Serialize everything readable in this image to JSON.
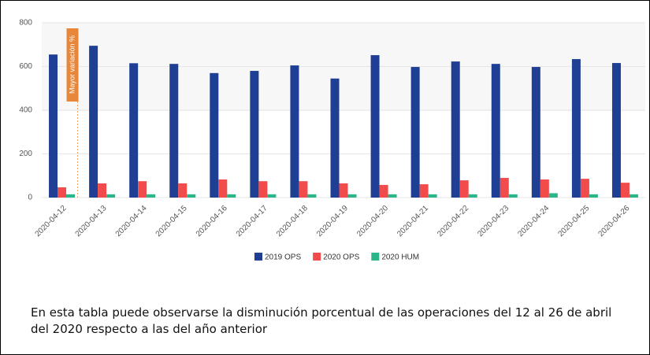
{
  "chart_data": {
    "type": "bar",
    "categories": [
      "2020-04-12",
      "2020-04-13",
      "2020-04-14",
      "2020-04-15",
      "2020-04-16",
      "2020-04-17",
      "2020-04-18",
      "2020-04-19",
      "2020-04-20",
      "2020-04-21",
      "2020-04-22",
      "2020-04-23",
      "2020-04-24",
      "2020-04-25",
      "2020-04-26"
    ],
    "series": [
      {
        "name": "2019 OPS",
        "color": "#1f3f94",
        "values": [
          655,
          695,
          615,
          612,
          570,
          580,
          605,
          545,
          652,
          598,
          623,
          612,
          598,
          634,
          616
        ]
      },
      {
        "name": "2020 OPS",
        "color": "#f24b4b",
        "values": [
          47,
          65,
          75,
          65,
          83,
          75,
          75,
          65,
          58,
          61,
          79,
          90,
          83,
          86,
          68
        ]
      },
      {
        "name": "2020 HUM",
        "color": "#2bb58a",
        "values": [
          15,
          15,
          15,
          15,
          15,
          15,
          15,
          15,
          15,
          15,
          15,
          15,
          20,
          15,
          15
        ]
      }
    ],
    "ylim": [
      0,
      800
    ],
    "yticks": [
      0,
      200,
      400,
      600,
      800
    ],
    "grid": true,
    "legend": "bottom",
    "annotation": "Mayor variación %"
  },
  "caption": "En esta tabla puede observarse la disminución porcentual de las operaciones del 12 al 26 de abril del 2020 respecto a las del año anterior"
}
